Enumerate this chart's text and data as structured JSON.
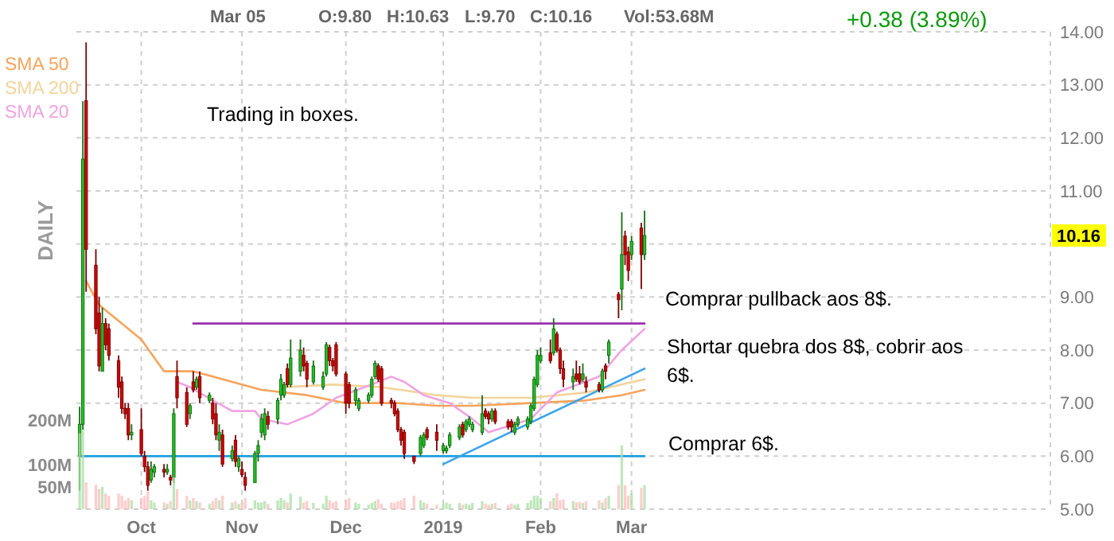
{
  "chart_data": {
    "type": "candlestick",
    "annotations": [
      "Mar 05",
      "O:9.80",
      "H:10.63",
      "L:9.70",
      "C:10.16",
      "Vol:53.68M",
      "+0.38 (3.89%)",
      "DAILY",
      "Trading in boxes.",
      "Comprar pullback aos 8$.",
      "Shortar quebra dos 8$, cobrir aos 6$.",
      "Comprar 6$.",
      {
        "text": "10.16",
        "y": 10.16
      }
    ],
    "x": [
      "2018-09-12",
      "2018-09-13",
      "2018-09-14",
      "2018-09-17",
      "2018-09-18",
      "2018-09-19",
      "2018-09-20",
      "2018-09-21",
      "2018-09-24",
      "2018-09-25",
      "2018-09-26",
      "2018-09-27",
      "2018-09-28",
      "2018-10-01",
      "2018-10-02",
      "2018-10-03",
      "2018-10-04",
      "2018-10-05",
      "2018-10-08",
      "2018-10-09",
      "2018-10-10",
      "2018-10-11",
      "2018-10-12",
      "2018-10-15",
      "2018-10-16",
      "2018-10-17",
      "2018-10-18",
      "2018-10-19",
      "2018-10-22",
      "2018-10-23",
      "2018-10-24",
      "2018-10-25",
      "2018-10-26",
      "2018-10-29",
      "2018-10-30",
      "2018-10-31",
      "2018-11-01",
      "2018-11-02",
      "2018-11-05",
      "2018-11-06",
      "2018-11-07",
      "2018-11-08",
      "2018-11-09",
      "2018-11-12",
      "2018-11-13",
      "2018-11-14",
      "2018-11-15",
      "2018-11-16",
      "2018-11-19",
      "2018-11-20",
      "2018-11-21",
      "2018-11-23",
      "2018-11-26",
      "2018-11-27",
      "2018-11-28",
      "2018-11-29",
      "2018-11-30",
      "2018-12-03",
      "2018-12-04",
      "2018-12-06",
      "2018-12-07",
      "2018-12-10",
      "2018-12-11",
      "2018-12-12",
      "2018-12-13",
      "2018-12-14",
      "2018-12-17",
      "2018-12-18",
      "2018-12-19",
      "2018-12-20",
      "2018-12-21",
      "2018-12-24",
      "2018-12-26",
      "2018-12-27",
      "2018-12-28",
      "2018-12-31",
      "2019-01-02",
      "2019-01-03",
      "2019-01-04",
      "2019-01-07",
      "2019-01-08",
      "2019-01-09",
      "2019-01-10",
      "2019-01-11",
      "2019-01-14",
      "2019-01-15",
      "2019-01-16",
      "2019-01-17",
      "2019-01-18",
      "2019-01-22",
      "2019-01-23",
      "2019-01-24",
      "2019-01-25",
      "2019-01-28",
      "2019-01-29",
      "2019-01-30",
      "2019-01-31",
      "2019-02-01",
      "2019-02-04",
      "2019-02-05",
      "2019-02-06",
      "2019-02-07",
      "2019-02-08",
      "2019-02-11",
      "2019-02-12",
      "2019-02-13",
      "2019-02-14",
      "2019-02-15",
      "2019-02-19",
      "2019-02-20",
      "2019-02-21",
      "2019-02-22",
      "2019-02-25",
      "2019-02-26",
      "2019-02-27",
      "2019-02-28",
      "2019-03-01",
      "2019-03-04",
      "2019-03-05"
    ],
    "xlim": [
      "2018-09-11",
      "2019-07-08"
    ],
    "xticks": [
      {
        "value": "2018-10-01",
        "label": "Oct"
      },
      {
        "value": "2018-11-01",
        "label": "Nov"
      },
      {
        "value": "2018-12-03",
        "label": "Dec"
      },
      {
        "value": "2019-01-02",
        "label": "2019"
      },
      {
        "value": "2019-02-01",
        "label": "Feb"
      },
      {
        "value": "2019-03-01",
        "label": "Mar"
      }
    ],
    "ylim": [
      5,
      14
    ],
    "yticks": [
      {
        "value": 5,
        "label": "5.00"
      },
      {
        "value": 6,
        "label": "6.00"
      },
      {
        "value": 7,
        "label": "7.00"
      },
      {
        "value": 8,
        "label": "8.00"
      },
      {
        "value": 9,
        "label": "9.00"
      },
      {
        "value": 10,
        "label": null
      },
      {
        "value": 11,
        "label": "11.00"
      },
      {
        "value": 12,
        "label": "12.00"
      },
      {
        "value": 13,
        "label": "13.00"
      },
      {
        "value": 14,
        "label": "14.00"
      }
    ],
    "y2lim": [
      0,
      1070
    ],
    "y2ticks": [
      {
        "value": 50,
        "label": "50M"
      },
      {
        "value": 100,
        "label": "100M"
      },
      {
        "value": 200,
        "label": "200M"
      }
    ],
    "grid": true,
    "legend": "top left",
    "series": [
      {
        "type": "bar",
        "axis": "y2",
        "values": [
          170,
          178,
          60,
          55,
          45,
          50,
          35,
          30,
          35,
          30,
          20,
          25,
          20,
          25,
          30,
          40,
          20,
          15,
          15,
          12,
          18,
          72,
          45,
          30,
          20,
          25,
          18,
          15,
          12,
          18,
          25,
          20,
          30,
          15,
          18,
          12,
          15,
          25,
          20,
          15,
          15,
          18,
          12,
          20,
          25,
          20,
          15,
          35,
          28,
          15,
          18,
          14,
          12,
          30,
          20,
          15,
          18,
          22,
          25,
          15,
          12,
          10,
          14,
          18,
          22,
          12,
          15,
          14,
          18,
          20,
          25,
          30,
          20,
          15,
          12,
          10,
          12,
          15,
          12,
          14,
          10,
          12,
          10,
          14,
          18,
          12,
          10,
          12,
          14,
          10,
          12,
          10,
          12,
          14,
          20,
          30,
          30,
          25,
          18,
          25,
          36,
          20,
          22,
          18,
          15,
          16,
          14,
          18,
          20,
          15,
          25,
          30,
          54,
          143,
          54,
          30,
          36,
          48,
          54
        ],
        "colors": [
          "#a9dfa4",
          "#a9dfa4",
          "#ffbcbc",
          "#ffbcbc",
          "#ffbcbc",
          "#a9dfa4",
          "#ffbcbc",
          "#ffbcbc",
          "#ffbcbc",
          "#ffbcbc",
          "#ffbcbc",
          "#ffbcbc",
          "#a9dfa4",
          "#ffbcbc",
          "#ffbcbc",
          "#ffbcbc",
          "#a9dfa4",
          "#a9dfa4",
          "#ffbcbc",
          "#a9dfa4",
          "#ffbcbc",
          "#a9dfa4",
          "#ffbcbc",
          "#ffbcbc",
          "#a9dfa4",
          "#ffbcbc",
          "#a9dfa4",
          "#ffbcbc",
          "#a9dfa4",
          "#ffbcbc",
          "#ffbcbc",
          "#a9dfa4",
          "#ffbcbc",
          "#a9dfa4",
          "#ffbcbc",
          "#a9dfa4",
          "#ffbcbc",
          "#ffbcbc",
          "#a9dfa4",
          "#a9dfa4",
          "#a9dfa4",
          "#a9dfa4",
          "#ffbcbc",
          "#a9dfa4",
          "#a9dfa4",
          "#a9dfa4",
          "#ffbcbc",
          "#a9dfa4",
          "#a9dfa4",
          "#ffbcbc",
          "#ffbcbc",
          "#a9dfa4",
          "#a9dfa4",
          "#a9dfa4",
          "#ffbcbc",
          "#ffbcbc",
          "#ffbcbc",
          "#ffbcbc",
          "#ffbcbc",
          "#a9dfa4",
          "#a9dfa4",
          "#a9dfa4",
          "#a9dfa4",
          "#a9dfa4",
          "#ffbcbc",
          "#ffbcbc",
          "#ffbcbc",
          "#ffbcbc",
          "#ffbcbc",
          "#ffbcbc",
          "#ffbcbc",
          "#ffbcbc",
          "#a9dfa4",
          "#a9dfa4",
          "#ffbcbc",
          "#ffbcbc",
          "#a9dfa4",
          "#a9dfa4",
          "#a9dfa4",
          "#a9dfa4",
          "#ffbcbc",
          "#a9dfa4",
          "#a9dfa4",
          "#a9dfa4",
          "#a9dfa4",
          "#ffbcbc",
          "#ffbcbc",
          "#a9dfa4",
          "#ffbcbc",
          "#ffbcbc",
          "#ffbcbc",
          "#a9dfa4",
          "#a9dfa4",
          "#a9dfa4",
          "#a9dfa4",
          "#a9dfa4",
          "#a9dfa4",
          "#a9dfa4",
          "#ffbcbc",
          "#a9dfa4",
          "#ffbcbc",
          "#ffbcbc",
          "#ffbcbc",
          "#a9dfa4",
          "#ffbcbc",
          "#ffbcbc",
          "#a9dfa4",
          "#ffbcbc",
          "#ffbcbc",
          "#a9dfa4",
          "#ffbcbc",
          "#a9dfa4",
          "#ffbcbc",
          "#a9dfa4",
          "#ffbcbc",
          "#ffbcbc",
          "#a9dfa4",
          "#ffbcbc",
          "#a9dfa4"
        ]
      },
      {
        "type": "line",
        "name": "SMA 50",
        "color": "#f7a35c",
        "x": [
          "2018-09-14",
          "2018-09-18",
          "2018-10-01",
          "2018-10-08",
          "2018-10-17",
          "2018-10-29",
          "2018-11-07",
          "2018-11-21",
          "2018-12-03",
          "2018-12-19",
          "2018-12-31",
          "2019-01-11",
          "2019-01-29",
          "2019-02-15",
          "2019-02-26",
          "2019-03-05"
        ],
        "values": [
          9.3,
          8.85,
          8.2,
          7.6,
          7.6,
          7.4,
          7.25,
          7.15,
          7.0,
          7.0,
          6.95,
          6.95,
          7.0,
          7.05,
          7.15,
          7.25
        ]
      },
      {
        "type": "line",
        "name": "SMA 200",
        "color": "#f2d49c",
        "x": [
          "2018-11-14",
          "2018-11-29",
          "2018-12-14",
          "2018-12-31",
          "2019-01-11",
          "2019-01-29",
          "2019-02-15",
          "2019-03-05"
        ],
        "values": [
          7.3,
          7.35,
          7.3,
          7.15,
          7.1,
          7.1,
          7.2,
          7.45
        ]
      },
      {
        "type": "line",
        "name": "SMA 20",
        "color": "#f0a3e2",
        "x": [
          "2018-10-12",
          "2018-10-16",
          "2018-10-23",
          "2018-10-29",
          "2018-11-05",
          "2018-11-07",
          "2018-11-15",
          "2018-11-23",
          "2018-11-30",
          "2018-12-11",
          "2018-12-17",
          "2018-12-21",
          "2018-12-27",
          "2019-01-04",
          "2019-01-11",
          "2019-01-16",
          "2019-01-29",
          "2019-02-06",
          "2019-02-19",
          "2019-02-26",
          "2019-03-05"
        ],
        "values": [
          7.4,
          7.3,
          7.05,
          6.85,
          6.85,
          6.7,
          6.6,
          6.8,
          7.1,
          7.35,
          7.5,
          7.4,
          7.15,
          7.0,
          6.7,
          6.45,
          6.7,
          7.2,
          7.5,
          8.0,
          8.4
        ]
      },
      {
        "type": "line",
        "color": "#9c2fb0",
        "x": [
          "2018-10-17",
          "2019-03-05"
        ],
        "values": [
          8.5,
          8.5
        ]
      },
      {
        "type": "line",
        "color": "#1e9fe0",
        "x": [
          "2018-09-12",
          "2019-03-05"
        ],
        "values": [
          6.0,
          6.0
        ]
      },
      {
        "type": "line",
        "color": "#3aa4ea",
        "x": [
          "2019-01-02",
          "2019-03-05"
        ],
        "values": [
          5.85,
          7.65
        ]
      },
      {
        "ohlc": [
          [
            6.0,
            6.93,
            5.35,
            6.6
          ],
          [
            6.6,
            12.69,
            6.5,
            11.6
          ],
          [
            12.7,
            13.8,
            9.1,
            9.9
          ],
          [
            9.6,
            9.9,
            8.3,
            8.4
          ],
          [
            8.7,
            9.0,
            7.6,
            7.7
          ],
          [
            7.6,
            8.8,
            7.6,
            8.5
          ],
          [
            8.5,
            8.6,
            8.0,
            8.1
          ],
          [
            8.4,
            8.5,
            7.8,
            7.9
          ],
          [
            7.8,
            7.9,
            7.1,
            7.3
          ],
          [
            7.4,
            7.5,
            6.8,
            6.9
          ],
          [
            6.9,
            7.0,
            6.7,
            6.8
          ],
          [
            6.9,
            7.0,
            6.3,
            6.4
          ],
          [
            6.4,
            6.6,
            6.3,
            6.45
          ],
          [
            6.5,
            6.9,
            6.0,
            6.05
          ],
          [
            6.0,
            6.1,
            5.7,
            5.8
          ],
          [
            5.8,
            5.9,
            5.35,
            5.45
          ],
          [
            5.55,
            5.9,
            5.5,
            5.75
          ],
          [
            5.7,
            5.85,
            5.6,
            5.8
          ],
          [
            5.75,
            5.85,
            5.6,
            5.7
          ],
          [
            5.7,
            5.85,
            5.65,
            5.75
          ],
          [
            5.6,
            5.65,
            5.45,
            5.55
          ],
          [
            5.6,
            6.9,
            5.5,
            6.8
          ],
          [
            7.5,
            7.8,
            6.9,
            7.1
          ],
          [
            7.2,
            7.3,
            6.55,
            6.6
          ],
          [
            6.8,
            7.0,
            6.7,
            6.95
          ],
          [
            7.4,
            7.6,
            7.2,
            7.25
          ],
          [
            7.3,
            7.5,
            7.25,
            7.45
          ],
          [
            7.5,
            7.6,
            7.0,
            7.1
          ],
          [
            7.05,
            7.2,
            7.0,
            7.15
          ],
          [
            7.0,
            7.1,
            6.6,
            6.7
          ],
          [
            6.8,
            7.0,
            6.3,
            6.4
          ],
          [
            6.3,
            6.6,
            6.1,
            6.45
          ],
          [
            6.4,
            6.5,
            5.8,
            5.85
          ],
          [
            5.95,
            6.2,
            5.9,
            6.1
          ],
          [
            6.3,
            6.4,
            5.8,
            5.9
          ],
          [
            5.8,
            6.0,
            5.7,
            5.95
          ],
          [
            5.75,
            5.9,
            5.6,
            5.65
          ],
          [
            5.6,
            5.7,
            5.35,
            5.45
          ],
          [
            5.5,
            6.1,
            5.5,
            6.05
          ],
          [
            6.05,
            6.3,
            5.9,
            6.2
          ],
          [
            6.45,
            6.8,
            6.35,
            6.7
          ],
          [
            6.4,
            6.9,
            6.3,
            6.8
          ],
          [
            6.75,
            6.85,
            6.5,
            6.6
          ],
          [
            6.7,
            7.1,
            6.6,
            7.05
          ],
          [
            7.15,
            7.55,
            7.05,
            7.45
          ],
          [
            7.15,
            7.4,
            7.1,
            7.35
          ],
          [
            7.65,
            7.75,
            7.3,
            7.35
          ],
          [
            7.35,
            8.2,
            7.3,
            7.85
          ],
          [
            7.6,
            8.2,
            7.5,
            8.0
          ],
          [
            7.9,
            8.05,
            7.6,
            7.7
          ],
          [
            7.75,
            7.8,
            7.3,
            7.45
          ],
          [
            7.4,
            7.8,
            7.35,
            7.7
          ],
          [
            7.3,
            7.6,
            7.25,
            7.5
          ],
          [
            7.55,
            8.15,
            7.5,
            8.1
          ],
          [
            8.05,
            8.1,
            7.7,
            7.8
          ],
          [
            7.8,
            7.85,
            7.6,
            7.7
          ],
          [
            8.1,
            8.15,
            7.5,
            7.55
          ],
          [
            7.55,
            7.6,
            6.8,
            7.0
          ],
          [
            7.35,
            7.4,
            6.9,
            7.0
          ],
          [
            7.05,
            7.3,
            6.95,
            7.25
          ],
          [
            6.9,
            7.1,
            6.85,
            7.05
          ],
          [
            7.05,
            7.2,
            7.0,
            7.15
          ],
          [
            7.15,
            7.5,
            7.1,
            7.45
          ],
          [
            7.5,
            7.8,
            7.45,
            7.75
          ],
          [
            7.7,
            7.75,
            7.4,
            7.45
          ],
          [
            7.65,
            7.7,
            6.95,
            7.0
          ],
          [
            7.05,
            7.1,
            6.9,
            7.0
          ],
          [
            7.0,
            7.05,
            6.75,
            6.8
          ],
          [
            6.85,
            6.9,
            6.45,
            6.5
          ],
          [
            6.5,
            6.55,
            6.2,
            6.3
          ],
          [
            6.45,
            6.5,
            5.95,
            6.05
          ],
          [
            6.0,
            6.0,
            5.85,
            5.9
          ],
          [
            6.05,
            6.4,
            6.0,
            6.35
          ],
          [
            6.2,
            6.45,
            6.15,
            6.4
          ],
          [
            6.5,
            6.55,
            6.3,
            6.35
          ],
          [
            6.45,
            6.6,
            6.1,
            6.3
          ],
          [
            6.1,
            6.25,
            6.05,
            6.2
          ],
          [
            6.1,
            6.2,
            6.05,
            6.15
          ],
          [
            6.2,
            6.45,
            6.15,
            6.4
          ],
          [
            6.35,
            6.6,
            6.3,
            6.55
          ],
          [
            6.6,
            6.65,
            6.35,
            6.4
          ],
          [
            6.5,
            6.7,
            6.45,
            6.65
          ],
          [
            6.6,
            6.75,
            6.55,
            6.7
          ],
          [
            6.5,
            6.65,
            6.45,
            6.6
          ],
          [
            6.45,
            7.15,
            6.4,
            6.8
          ],
          [
            6.85,
            6.9,
            6.7,
            6.75
          ],
          [
            6.8,
            6.85,
            6.6,
            6.7
          ],
          [
            6.7,
            6.9,
            6.65,
            6.85
          ],
          [
            6.85,
            6.9,
            6.6,
            6.65
          ],
          [
            6.65,
            6.7,
            6.5,
            6.55
          ],
          [
            6.65,
            6.7,
            6.45,
            6.55
          ],
          [
            6.45,
            6.65,
            6.4,
            6.6
          ],
          [
            6.6,
            6.75,
            6.55,
            6.7
          ],
          [
            6.55,
            6.75,
            6.5,
            6.7
          ],
          [
            6.65,
            7.0,
            6.6,
            6.95
          ],
          [
            6.9,
            7.5,
            6.85,
            7.45
          ],
          [
            7.35,
            8.0,
            7.3,
            7.9
          ],
          [
            7.8,
            8.05,
            7.75,
            7.9
          ],
          [
            7.95,
            8.2,
            7.75,
            7.8
          ],
          [
            7.95,
            8.6,
            7.9,
            8.4
          ],
          [
            8.3,
            8.35,
            7.95,
            8.0
          ],
          [
            8.0,
            8.05,
            7.55,
            7.65
          ],
          [
            7.65,
            7.8,
            7.3,
            7.45
          ],
          [
            7.4,
            7.65,
            7.25,
            7.5
          ],
          [
            7.55,
            7.8,
            7.4,
            7.45
          ],
          [
            7.55,
            7.7,
            7.35,
            7.4
          ],
          [
            7.45,
            7.75,
            7.4,
            7.55
          ],
          [
            7.4,
            7.5,
            7.2,
            7.3
          ],
          [
            7.35,
            7.4,
            7.2,
            7.25
          ],
          [
            7.25,
            7.65,
            7.2,
            7.6
          ],
          [
            7.7,
            7.75,
            7.45,
            7.6
          ],
          [
            7.9,
            8.2,
            7.75,
            8.15
          ],
          [
            9.05,
            9.1,
            8.6,
            8.95
          ],
          [
            9.15,
            10.6,
            8.75,
            9.8
          ],
          [
            10.15,
            10.25,
            9.6,
            9.8
          ],
          [
            9.85,
            9.95,
            9.3,
            9.5
          ],
          [
            9.8,
            10.15,
            9.7,
            10.05
          ],
          [
            10.3,
            10.4,
            9.15,
            9.8
          ],
          [
            9.8,
            10.63,
            9.7,
            10.16
          ]
        ],
        "colors": [
          "#22c322",
          "#22c322",
          "#d50000",
          "#d50000",
          "#d50000",
          "#22c322",
          "#d50000",
          "#d50000",
          "#d50000",
          "#d50000",
          "#d50000",
          "#d50000",
          "#22c322",
          "#d50000",
          "#d50000",
          "#d50000",
          "#22c322",
          "#22c322",
          "#d50000",
          "#22c322",
          "#d50000",
          "#22c322",
          "#d50000",
          "#d50000",
          "#22c322",
          "#d50000",
          "#22c322",
          "#d50000",
          "#22c322",
          "#d50000",
          "#d50000",
          "#22c322",
          "#d50000",
          "#22c322",
          "#d50000",
          "#22c322",
          "#d50000",
          "#d50000",
          "#22c322",
          "#22c322",
          "#22c322",
          "#22c322",
          "#d50000",
          "#22c322",
          "#22c322",
          "#22c322",
          "#d50000",
          "#22c322",
          "#22c322",
          "#d50000",
          "#d50000",
          "#22c322",
          "#22c322",
          "#22c322",
          "#d50000",
          "#d50000",
          "#d50000",
          "#d50000",
          "#d50000",
          "#22c322",
          "#22c322",
          "#22c322",
          "#22c322",
          "#22c322",
          "#d50000",
          "#d50000",
          "#d50000",
          "#d50000",
          "#d50000",
          "#d50000",
          "#d50000",
          "#d50000",
          "#22c322",
          "#22c322",
          "#d50000",
          "#d50000",
          "#22c322",
          "#22c322",
          "#22c322",
          "#22c322",
          "#d50000",
          "#22c322",
          "#22c322",
          "#22c322",
          "#22c322",
          "#d50000",
          "#d50000",
          "#22c322",
          "#d50000",
          "#d50000",
          "#d50000",
          "#22c322",
          "#22c322",
          "#22c322",
          "#22c322",
          "#22c322",
          "#22c322",
          "#22c322",
          "#d50000",
          "#22c322",
          "#d50000",
          "#d50000",
          "#d50000",
          "#22c322",
          "#d50000",
          "#d50000",
          "#22c322",
          "#d50000",
          "#d50000",
          "#22c322",
          "#d50000",
          "#22c322",
          "#d50000",
          "#22c322",
          "#d50000",
          "#d50000",
          "#22c322",
          "#d50000",
          "#22c322"
        ]
      }
    ]
  }
}
